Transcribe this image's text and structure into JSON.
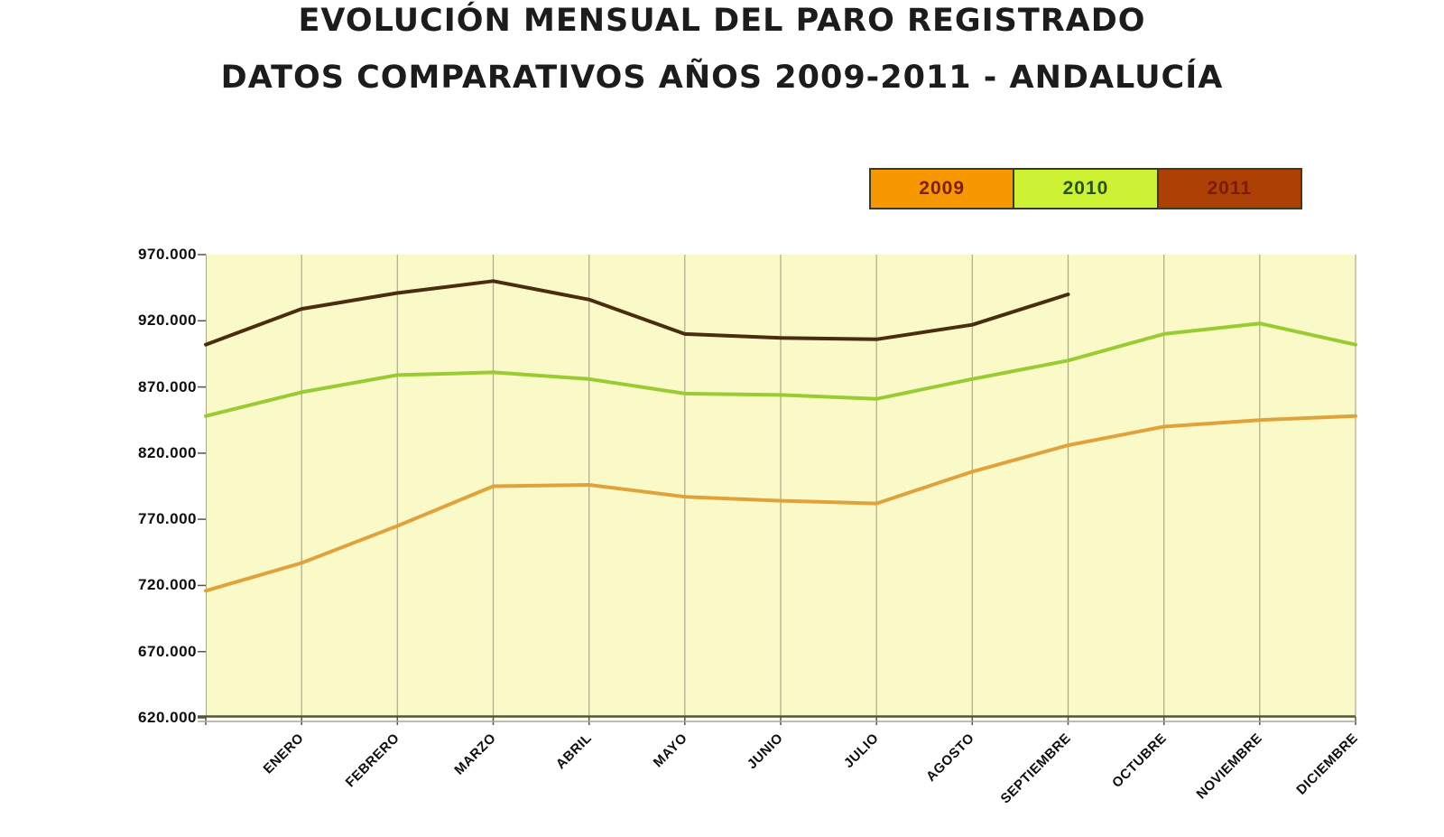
{
  "title": {
    "line1": "EVOLUCIÓN MENSUAL DEL PARO REGISTRADO",
    "line2": "DATOS COMPARATIVOS AÑOS 2009-2011 - ANDALUCÍA"
  },
  "legend": {
    "items": [
      {
        "label": "2009",
        "fill": "#F79800",
        "text_color": "#7D2008"
      },
      {
        "label": "2010",
        "fill": "#CCF233",
        "text_color": "#27530E"
      },
      {
        "label": "2011",
        "fill": "#AD4105",
        "text_color": "#7C1A02"
      }
    ]
  },
  "chart_data": {
    "type": "line",
    "title": "EVOLUCIÓN MENSUAL DEL PARO REGISTRADO — DATOS COMPARATIVOS AÑOS 2009-2011 - ANDALUCÍA",
    "categories": [
      "",
      "ENERO",
      "FEBRERO",
      "MARZO",
      "ABRIL",
      "MAYO",
      "JUNIO",
      "JULIO",
      "AGOSTO",
      "SEPTIEMBRE",
      "OCTUBRE",
      "NOVIEMBRE",
      "DICIEMBRE"
    ],
    "categories_note": "first unlabeled position sits on the y-axis; each series starts there with the previous December value",
    "y_axis": {
      "min": 620000,
      "max": 970000,
      "step": 50000,
      "tick_labels": [
        "970.000",
        "920.000",
        "870.000",
        "820.000",
        "770.000",
        "720.000",
        "670.000",
        "620.000"
      ]
    },
    "grid": {
      "vertical": true,
      "horizontal": false
    },
    "legend_position": "top-right",
    "series": [
      {
        "name": "2009",
        "color": "#E0A33C",
        "values": [
          716000,
          737000,
          765000,
          795000,
          796000,
          787000,
          784000,
          782000,
          806000,
          826000,
          840000,
          845000,
          848000
        ]
      },
      {
        "name": "2010",
        "color": "#99CB32",
        "values": [
          848000,
          866000,
          879000,
          881000,
          876000,
          865000,
          864000,
          861000,
          876000,
          890000,
          910000,
          918000,
          902000
        ]
      },
      {
        "name": "2011",
        "color": "#4A2C0E",
        "values": [
          902000,
          929000,
          941000,
          950000,
          936000,
          910000,
          907000,
          906000,
          917000,
          940000
        ]
      }
    ]
  },
  "colors": {
    "page_bg": "#FFFFFF",
    "plot_bg": "#FAF9C8",
    "gridline": "#ABAB8A",
    "axis": "#55543C",
    "axis_secondary": "#A9A98C",
    "tick": "#55543C",
    "label_text": "#0D0D0D"
  }
}
